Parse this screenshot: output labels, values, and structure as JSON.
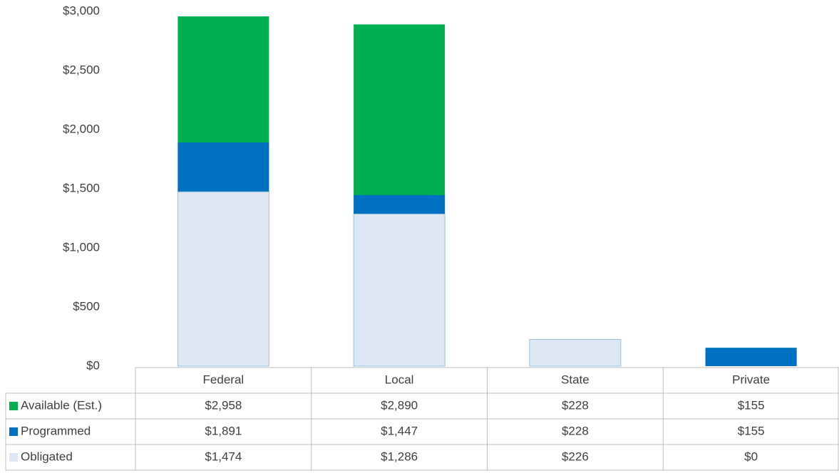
{
  "chart_data": {
    "type": "bar",
    "overlap": true,
    "categories": [
      "Federal",
      "Local",
      "State",
      "Private"
    ],
    "series": [
      {
        "name": "Available (Est.)",
        "color": "#00b050",
        "values": [
          2958,
          2890,
          228,
          155
        ],
        "value_labels": [
          "$2,958",
          "$2,890",
          "$228",
          "$155"
        ]
      },
      {
        "name": "Programmed",
        "color": "#0070c0",
        "values": [
          1891,
          1447,
          228,
          155
        ],
        "value_labels": [
          "$1,891",
          "$1,447",
          "$228",
          "$155"
        ]
      },
      {
        "name": "Obligated",
        "color": "#dde8f4",
        "values": [
          1474,
          1286,
          226,
          0
        ],
        "value_labels": [
          "$1,474",
          "$1,286",
          "$226",
          "$0"
        ]
      }
    ],
    "ylim": [
      0,
      3000
    ],
    "yticks": [
      {
        "value": 0,
        "label": "$0"
      },
      {
        "value": 500,
        "label": "$500"
      },
      {
        "value": 1000,
        "label": "$1,000"
      },
      {
        "value": 1500,
        "label": "$1,500"
      },
      {
        "value": 2000,
        "label": "$2,000"
      },
      {
        "value": 2500,
        "label": "$2,500"
      },
      {
        "value": 3000,
        "label": "$3,000"
      }
    ],
    "grid": false
  }
}
